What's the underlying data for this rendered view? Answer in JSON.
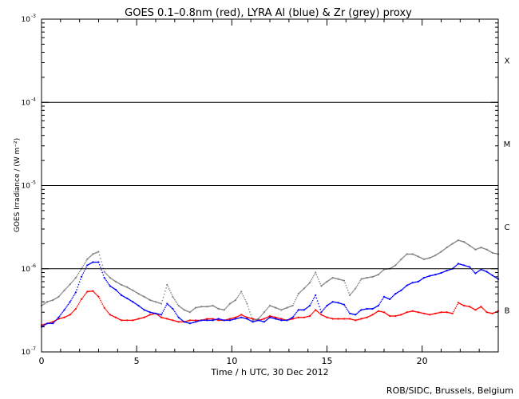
{
  "chart_data": {
    "type": "scatter",
    "title": "GOES 0.1–0.8nm (red), LYRA Al (blue) & Zr (grey) proxy",
    "xlabel": "Time / h UTC, 30 Dec 2012",
    "ylabel": "GOES Irradiance / (W m⁻²)",
    "xlim": [
      0,
      24
    ],
    "ylim": [
      1e-07,
      0.001
    ],
    "yscale": "log",
    "x_ticks": [
      0,
      5,
      10,
      15,
      20
    ],
    "x_tick_labels": [
      "0",
      "5",
      "10",
      "15",
      "20"
    ],
    "y_ticks": [
      1e-07,
      1e-06,
      1e-05,
      0.0001,
      0.001
    ],
    "y_tick_labels": [
      {
        "base": "10",
        "exp": "-7"
      },
      {
        "base": "10",
        "exp": "-6"
      },
      {
        "base": "10",
        "exp": "-5"
      },
      {
        "base": "10",
        "exp": "-4"
      },
      {
        "base": "10",
        "exp": "-3"
      }
    ],
    "flare_class_lines": [
      1e-06,
      1e-05,
      0.0001
    ],
    "flare_classes": [
      {
        "label": "X",
        "y": 0.00032
      },
      {
        "label": "M",
        "y": 3.2e-05
      },
      {
        "label": "C",
        "y": 3.2e-06
      },
      {
        "label": "B",
        "y": 3.2e-07
      }
    ],
    "series": [
      {
        "color": "#ff0000",
        "x": [
          0,
          0.3,
          0.6,
          0.9,
          1.2,
          1.5,
          1.8,
          2.1,
          2.4,
          2.7,
          3.0,
          3.3,
          3.6,
          3.9,
          4.2,
          4.5,
          4.8,
          5.1,
          5.4,
          5.7,
          6.0,
          6.3,
          6.6,
          6.9,
          7.2,
          7.5,
          7.8,
          8.1,
          8.4,
          8.7,
          9.0,
          9.3,
          9.6,
          9.9,
          10.2,
          10.5,
          10.8,
          11.1,
          11.4,
          11.7,
          12.0,
          12.3,
          12.6,
          12.9,
          13.2,
          13.5,
          13.8,
          14.1,
          14.4,
          14.7,
          15.0,
          15.3,
          15.6,
          15.9,
          16.2,
          16.5,
          16.8,
          17.1,
          17.4,
          17.7,
          18.0,
          18.3,
          18.6,
          18.9,
          19.2,
          19.5,
          19.8,
          20.1,
          20.4,
          20.7,
          21.0,
          21.3,
          21.6,
          21.9,
          22.2,
          22.5,
          22.8,
          23.1,
          23.4,
          23.7,
          24.0
        ],
        "y": [
          2.1e-07,
          2.2e-07,
          2.3e-07,
          2.5e-07,
          2.6e-07,
          2.8e-07,
          3.3e-07,
          4.3e-07,
          5.3e-07,
          5.4e-07,
          4.6e-07,
          3.4e-07,
          2.8e-07,
          2.6e-07,
          2.4e-07,
          2.4e-07,
          2.4e-07,
          2.5e-07,
          2.6e-07,
          2.8e-07,
          2.9e-07,
          2.6e-07,
          2.5e-07,
          2.4e-07,
          2.3e-07,
          2.3e-07,
          2.4e-07,
          2.4e-07,
          2.4e-07,
          2.5e-07,
          2.5e-07,
          2.4e-07,
          2.4e-07,
          2.5e-07,
          2.6e-07,
          2.8e-07,
          2.6e-07,
          2.5e-07,
          2.4e-07,
          2.5e-07,
          2.7e-07,
          2.6e-07,
          2.5e-07,
          2.4e-07,
          2.5e-07,
          2.6e-07,
          2.6e-07,
          2.7e-07,
          3.2e-07,
          2.8e-07,
          2.6e-07,
          2.5e-07,
          2.5e-07,
          2.5e-07,
          2.5e-07,
          2.4e-07,
          2.5e-07,
          2.6e-07,
          2.8e-07,
          3.1e-07,
          3e-07,
          2.7e-07,
          2.7e-07,
          2.8e-07,
          3e-07,
          3.1e-07,
          3e-07,
          2.9e-07,
          2.8e-07,
          2.9e-07,
          3e-07,
          3e-07,
          2.9e-07,
          3.9e-07,
          3.6e-07,
          3.5e-07,
          3.2e-07,
          3.5e-07,
          3e-07,
          2.9e-07,
          3.1e-07
        ]
      },
      {
        "color": "#0000ff",
        "x": [
          0,
          0.3,
          0.6,
          0.9,
          1.2,
          1.5,
          1.8,
          2.1,
          2.4,
          2.7,
          3.0,
          3.3,
          3.6,
          3.9,
          4.2,
          4.5,
          4.8,
          5.1,
          5.4,
          5.7,
          6.0,
          6.3,
          6.6,
          6.9,
          7.2,
          7.5,
          7.8,
          8.1,
          8.4,
          8.7,
          9.0,
          9.3,
          9.6,
          9.9,
          10.2,
          10.5,
          10.8,
          11.1,
          11.4,
          11.7,
          12.0,
          12.3,
          12.6,
          12.9,
          13.2,
          13.5,
          13.8,
          14.1,
          14.4,
          14.7,
          15.0,
          15.3,
          15.6,
          15.9,
          16.2,
          16.5,
          16.8,
          17.1,
          17.4,
          17.7,
          18.0,
          18.3,
          18.6,
          18.9,
          19.2,
          19.5,
          19.8,
          20.1,
          20.4,
          20.7,
          21.0,
          21.3,
          21.6,
          21.9,
          22.2,
          22.5,
          22.8,
          23.1,
          23.4,
          23.7,
          24.0
        ],
        "y": [
          2e-07,
          2.2e-07,
          2.2e-07,
          2.6e-07,
          3.2e-07,
          4e-07,
          5.2e-07,
          8e-07,
          1.1e-06,
          1.2e-06,
          1.2e-06,
          7.8e-07,
          6.2e-07,
          5.6e-07,
          4.8e-07,
          4.4e-07,
          4e-07,
          3.6e-07,
          3.2e-07,
          3e-07,
          2.9e-07,
          2.8e-07,
          3.8e-07,
          3.3e-07,
          2.6e-07,
          2.3e-07,
          2.2e-07,
          2.3e-07,
          2.4e-07,
          2.4e-07,
          2.4e-07,
          2.5e-07,
          2.4e-07,
          2.4e-07,
          2.5e-07,
          2.6e-07,
          2.5e-07,
          2.3e-07,
          2.4e-07,
          2.3e-07,
          2.6e-07,
          2.5e-07,
          2.4e-07,
          2.4e-07,
          2.6e-07,
          3.2e-07,
          3.2e-07,
          3.6e-07,
          4.8e-07,
          3e-07,
          3.6e-07,
          4e-07,
          3.9e-07,
          3.7e-07,
          2.9e-07,
          2.8e-07,
          3.2e-07,
          3.3e-07,
          3.3e-07,
          3.6e-07,
          4.6e-07,
          4.3e-07,
          5e-07,
          5.5e-07,
          6.3e-07,
          6.8e-07,
          7e-07,
          7.8e-07,
          8.2e-07,
          8.5e-07,
          8.9e-07,
          9.5e-07,
          1e-06,
          1.15e-06,
          1.1e-06,
          1.05e-06,
          8.8e-07,
          9.8e-07,
          9.2e-07,
          8.3e-07,
          7.5e-07
        ]
      },
      {
        "color": "#808080",
        "x": [
          0,
          0.3,
          0.6,
          0.9,
          1.2,
          1.5,
          1.8,
          2.1,
          2.4,
          2.7,
          3.0,
          3.3,
          3.6,
          3.9,
          4.2,
          4.5,
          4.8,
          5.1,
          5.4,
          5.7,
          6.0,
          6.3,
          6.6,
          6.9,
          7.2,
          7.5,
          7.8,
          8.1,
          8.4,
          8.7,
          9.0,
          9.3,
          9.6,
          9.9,
          10.2,
          10.5,
          10.8,
          11.1,
          11.4,
          11.7,
          12.0,
          12.3,
          12.6,
          12.9,
          13.2,
          13.5,
          13.8,
          14.1,
          14.4,
          14.7,
          15.0,
          15.3,
          15.6,
          15.9,
          16.2,
          16.5,
          16.8,
          17.1,
          17.4,
          17.7,
          18.0,
          18.3,
          18.6,
          18.9,
          19.2,
          19.5,
          19.8,
          20.1,
          20.4,
          20.7,
          21.0,
          21.3,
          21.6,
          21.9,
          22.2,
          22.5,
          22.8,
          23.1,
          23.4,
          23.7,
          24.0
        ],
        "y": [
          3.6e-07,
          4e-07,
          4.2e-07,
          4.6e-07,
          5.5e-07,
          6.5e-07,
          7.8e-07,
          1e-06,
          1.3e-06,
          1.5e-06,
          1.6e-06,
          9.2e-07,
          7.8e-07,
          7e-07,
          6.4e-07,
          6e-07,
          5.5e-07,
          5e-07,
          4.6e-07,
          4.2e-07,
          4e-07,
          3.8e-07,
          6.4e-07,
          4.6e-07,
          3.6e-07,
          3.2e-07,
          3e-07,
          3.4e-07,
          3.5e-07,
          3.5e-07,
          3.6e-07,
          3.3e-07,
          3.2e-07,
          3.8e-07,
          4.2e-07,
          5.3e-07,
          3.8e-07,
          2.4e-07,
          2.5e-07,
          3e-07,
          3.6e-07,
          3.4e-07,
          3.2e-07,
          3.4e-07,
          3.6e-07,
          5e-07,
          5.8e-07,
          6.8e-07,
          9e-07,
          6.2e-07,
          7e-07,
          7.8e-07,
          7.5e-07,
          7.2e-07,
          4.8e-07,
          5.8e-07,
          7.5e-07,
          7.8e-07,
          8e-07,
          8.5e-07,
          9.8e-07,
          1e-06,
          1.1e-06,
          1.3e-06,
          1.5e-06,
          1.5e-06,
          1.4e-06,
          1.3e-06,
          1.35e-06,
          1.45e-06,
          1.6e-06,
          1.8e-06,
          2e-06,
          2.2e-06,
          2.1e-06,
          1.9e-06,
          1.7e-06,
          1.8e-06,
          1.7e-06,
          1.55e-06,
          1.5e-06
        ]
      }
    ],
    "credit": "ROB/SIDC, Brussels, Belgium"
  }
}
